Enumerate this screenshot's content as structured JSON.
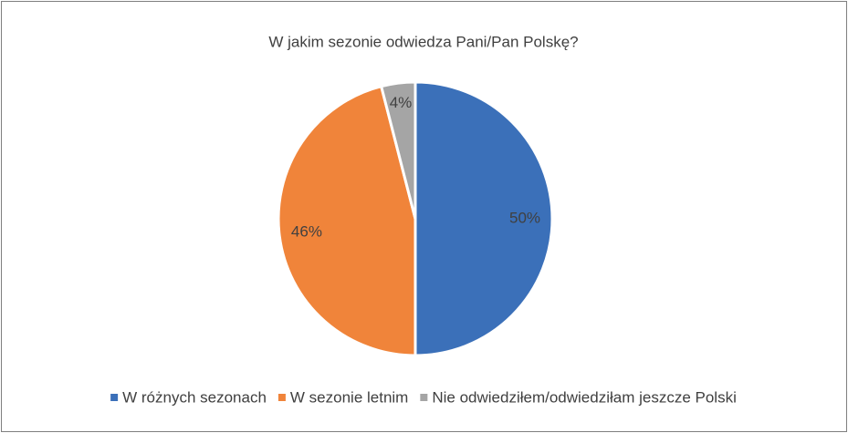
{
  "chart_data": {
    "type": "pie",
    "title": "W jakim sezonie odwiedza Pani/Pan Polskę?",
    "categories": [
      "W różnych sezonach",
      "W sezonie letnim",
      "Nie odwiedziłem/odwiedziłam jeszcze Polski"
    ],
    "values": [
      50,
      46,
      4
    ],
    "value_labels": [
      "50%",
      "46%",
      "4%"
    ],
    "colors": [
      "#3b70b9",
      "#f0843a",
      "#a5a5a5"
    ],
    "legend": "bottom"
  }
}
